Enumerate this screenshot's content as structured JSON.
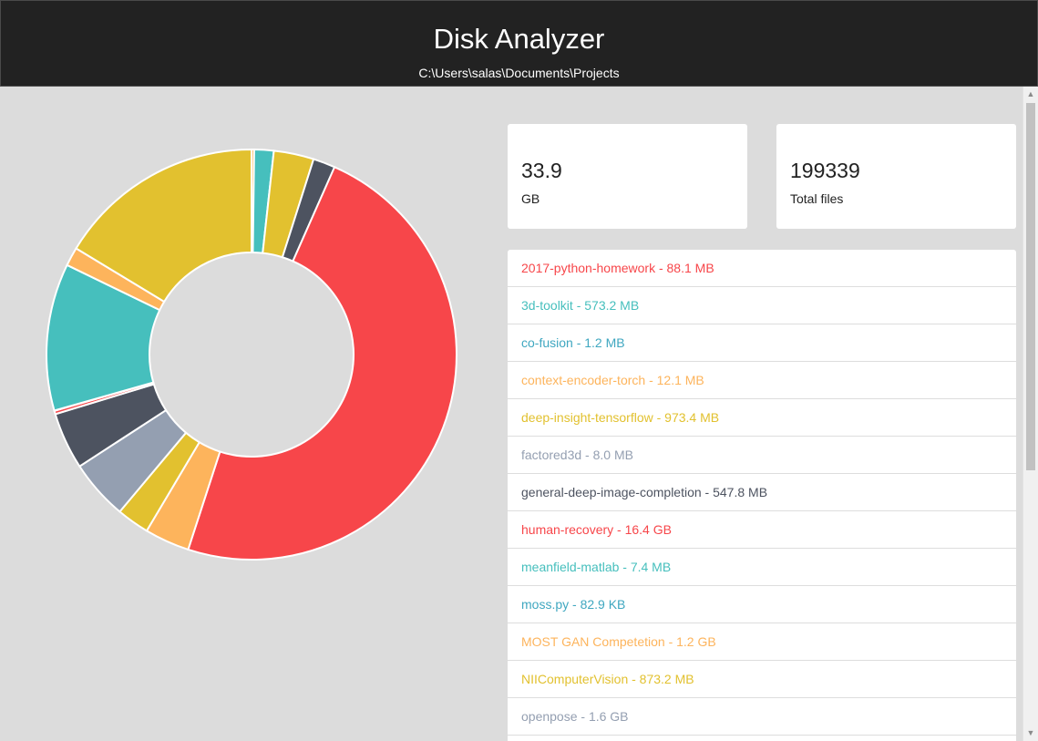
{
  "app": {
    "title": "Disk Analyzer",
    "path": "C:\\Users\\salas\\Documents\\Projects"
  },
  "stats": {
    "size_value": "33.9",
    "size_label": "GB",
    "files_value": "199339",
    "files_label": "Total files"
  },
  "files": [
    {
      "text": "2017-python-homework - 88.1 MB",
      "color": "#f7464a"
    },
    {
      "text": "3d-toolkit - 573.2 MB",
      "color": "#46bfbd"
    },
    {
      "text": "co-fusion - 1.2 MB",
      "color": "#3fa7c0"
    },
    {
      "text": "context-encoder-torch - 12.1 MB",
      "color": "#fdb45c"
    },
    {
      "text": "deep-insight-tensorflow - 973.4 MB",
      "color": "#e2c12f"
    },
    {
      "text": "factored3d - 8.0 MB",
      "color": "#949fb1"
    },
    {
      "text": "general-deep-image-completion - 547.8 MB",
      "color": "#4d5360"
    },
    {
      "text": "human-recovery - 16.4 GB",
      "color": "#f7464a"
    },
    {
      "text": "meanfield-matlab - 7.4 MB",
      "color": "#46bfbd"
    },
    {
      "text": "moss.py - 82.9 KB",
      "color": "#3fa7c0"
    },
    {
      "text": "MOST GAN Competetion - 1.2 GB",
      "color": "#fdb45c"
    },
    {
      "text": "NIIComputerVision - 873.2 MB",
      "color": "#e2c12f"
    },
    {
      "text": "openpose - 1.6 GB",
      "color": "#949fb1"
    },
    {
      "text": "",
      "color": "#4d5360"
    }
  ],
  "chart_data": {
    "type": "pie",
    "style": "doughnut",
    "segments": [
      {
        "color": "#fdb45c",
        "value": 0.07
      },
      {
        "color": "#46bfbd",
        "value": 0.52
      },
      {
        "color": "#e2c12f",
        "value": 1.07
      },
      {
        "color": "#4d5360",
        "value": 0.59
      },
      {
        "color": "#f7464a",
        "value": 16.4
      },
      {
        "color": "#fdb45c",
        "value": 1.2
      },
      {
        "color": "#e2c12f",
        "value": 0.87
      },
      {
        "color": "#949fb1",
        "value": 1.6
      },
      {
        "color": "#4d5360",
        "value": 1.52
      },
      {
        "color": "#f7464a",
        "value": 0.09
      },
      {
        "color": "#46bfbd",
        "value": 0.008
      },
      {
        "color": "#46bfbd",
        "value": 3.93
      },
      {
        "color": "#fdb45c",
        "value": 0.5
      },
      {
        "color": "#e2c12f",
        "value": 5.54
      }
    ]
  },
  "colors": {
    "header_bg": "#222222",
    "page_bg": "#dcdcdc",
    "card_bg": "#ffffff"
  }
}
